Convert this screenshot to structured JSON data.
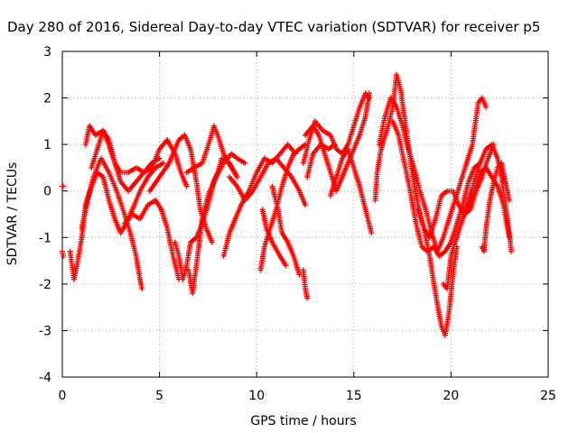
{
  "chart_data": {
    "type": "scatter",
    "title": "Day 280 of 2016, Sidereal Day-to-day VTEC variation (SDTVAR) for receiver p5",
    "xlabel": "GPS time / hours",
    "ylabel": "SDTVAR / TECUs",
    "xlim": [
      0,
      25
    ],
    "ylim": [
      -4,
      3
    ],
    "xticks": [
      "0",
      "5",
      "10",
      "15",
      "20",
      "25"
    ],
    "yticks": [
      "-4",
      "-3",
      "-2",
      "-1",
      "0",
      "1",
      "2",
      "3"
    ],
    "grid": true,
    "marker": "+",
    "color": "#ff0000",
    "tracks": [
      [
        [
          1.0,
          -0.8
        ],
        [
          1.3,
          -0.2
        ],
        [
          1.6,
          0.3
        ],
        [
          2.0,
          0.7
        ],
        [
          2.4,
          0.4
        ],
        [
          2.8,
          0.0
        ],
        [
          3.2,
          -0.5
        ],
        [
          3.5,
          -0.9
        ],
        [
          3.8,
          -1.4
        ],
        [
          4.0,
          -1.9
        ],
        [
          4.1,
          -2.1
        ]
      ],
      [
        [
          1.2,
          1.0
        ],
        [
          1.4,
          1.4
        ],
        [
          1.7,
          1.2
        ],
        [
          2.1,
          1.3
        ],
        [
          2.4,
          1.0
        ],
        [
          2.7,
          0.6
        ],
        [
          3.0,
          0.4
        ],
        [
          3.4,
          0.4
        ],
        [
          3.8,
          0.5
        ],
        [
          4.2,
          0.4
        ],
        [
          4.6,
          0.6
        ],
        [
          5.0,
          0.7
        ]
      ],
      [
        [
          0.4,
          -1.3
        ],
        [
          0.6,
          -1.9
        ],
        [
          0.8,
          -1.5
        ],
        [
          1.0,
          -1.0
        ],
        [
          1.2,
          -0.3
        ],
        [
          1.5,
          0.1
        ],
        [
          1.8,
          0.4
        ],
        [
          2.1,
          0.3
        ],
        [
          2.4,
          -0.2
        ],
        [
          2.7,
          -0.6
        ],
        [
          3.0,
          -0.9
        ],
        [
          3.3,
          -0.7
        ],
        [
          3.6,
          -0.4
        ],
        [
          4.0,
          0.0
        ],
        [
          4.4,
          0.3
        ],
        [
          4.8,
          0.5
        ],
        [
          5.2,
          0.6
        ]
      ],
      [
        [
          1.5,
          0.5
        ],
        [
          1.8,
          0.9
        ],
        [
          2.1,
          1.3
        ],
        [
          2.4,
          1.1
        ],
        [
          2.7,
          0.6
        ],
        [
          3.0,
          0.2
        ],
        [
          3.4,
          0.0
        ],
        [
          3.8,
          0.2
        ],
        [
          4.2,
          0.4
        ],
        [
          4.6,
          0.5
        ],
        [
          5.0,
          0.9
        ],
        [
          5.4,
          1.1
        ],
        [
          5.8,
          0.8
        ],
        [
          6.1,
          0.4
        ],
        [
          6.4,
          0.1
        ]
      ],
      [
        [
          3.2,
          -0.7
        ],
        [
          3.6,
          -0.5
        ],
        [
          4.0,
          -0.6
        ],
        [
          4.4,
          -0.3
        ],
        [
          4.8,
          -0.2
        ],
        [
          5.1,
          -0.4
        ],
        [
          5.4,
          -0.8
        ],
        [
          5.7,
          -1.4
        ],
        [
          6.0,
          -1.9
        ]
      ],
      [
        [
          4.5,
          0.0
        ],
        [
          5.0,
          0.3
        ],
        [
          5.5,
          0.6
        ],
        [
          6.0,
          1.1
        ],
        [
          6.3,
          1.2
        ],
        [
          6.6,
          0.9
        ],
        [
          6.9,
          0.2
        ],
        [
          7.1,
          -0.4
        ],
        [
          7.4,
          -0.8
        ],
        [
          7.7,
          -1.1
        ]
      ],
      [
        [
          5.8,
          -1.1
        ],
        [
          6.0,
          -1.4
        ],
        [
          6.2,
          -1.9
        ],
        [
          6.4,
          -1.6
        ],
        [
          6.6,
          -1.1
        ],
        [
          6.9,
          -1.0
        ],
        [
          7.2,
          -0.7
        ],
        [
          7.5,
          -0.3
        ],
        [
          7.8,
          0.2
        ],
        [
          8.0,
          0.4
        ],
        [
          8.2,
          0.7
        ],
        [
          8.6,
          0.6
        ],
        [
          9.0,
          0.3
        ]
      ],
      [
        [
          6.4,
          0.4
        ],
        [
          6.8,
          0.5
        ],
        [
          7.2,
          0.6
        ],
        [
          7.6,
          1.1
        ],
        [
          7.8,
          1.4
        ],
        [
          8.0,
          1.2
        ],
        [
          8.3,
          0.8
        ],
        [
          8.7,
          0.5
        ],
        [
          9.0,
          0.3
        ]
      ],
      [
        [
          6.5,
          -1.7
        ],
        [
          6.7,
          -2.2
        ],
        [
          6.9,
          -1.6
        ],
        [
          7.2,
          -0.6
        ],
        [
          7.5,
          -0.1
        ],
        [
          7.9,
          0.3
        ],
        [
          8.3,
          0.6
        ],
        [
          8.7,
          0.8
        ],
        [
          9.0,
          0.7
        ],
        [
          9.4,
          0.6
        ]
      ],
      [
        [
          8.3,
          -1.4
        ],
        [
          8.6,
          -0.9
        ],
        [
          8.9,
          -0.6
        ],
        [
          9.2,
          -0.3
        ],
        [
          9.6,
          0.0
        ],
        [
          10.0,
          0.4
        ],
        [
          10.4,
          0.7
        ],
        [
          10.8,
          0.6
        ],
        [
          11.2,
          0.8
        ],
        [
          11.6,
          1.0
        ],
        [
          12.0,
          0.8
        ]
      ],
      [
        [
          8.6,
          0.3
        ],
        [
          9.0,
          0.1
        ],
        [
          9.4,
          -0.2
        ],
        [
          9.8,
          0.0
        ],
        [
          10.2,
          0.3
        ],
        [
          10.6,
          0.6
        ],
        [
          11.0,
          0.7
        ],
        [
          11.4,
          0.5
        ],
        [
          11.8,
          0.3
        ],
        [
          12.2,
          0.0
        ],
        [
          12.5,
          -0.3
        ]
      ],
      [
        [
          10.2,
          -1.7
        ],
        [
          10.4,
          -1.2
        ],
        [
          10.7,
          -0.8
        ],
        [
          11.0,
          -0.4
        ],
        [
          11.3,
          0.1
        ],
        [
          11.6,
          0.5
        ],
        [
          11.9,
          0.8
        ],
        [
          12.2,
          0.9
        ],
        [
          12.5,
          1.0
        ]
      ],
      [
        [
          10.8,
          0.1
        ],
        [
          11.1,
          -0.4
        ],
        [
          11.3,
          -0.9
        ],
        [
          11.6,
          -1.1
        ],
        [
          11.9,
          -1.4
        ],
        [
          12.2,
          -1.8
        ]
      ],
      [
        [
          10.3,
          -0.4
        ],
        [
          10.5,
          -0.8
        ],
        [
          10.8,
          -1.1
        ],
        [
          11.2,
          -1.4
        ],
        [
          11.5,
          -1.6
        ]
      ],
      [
        [
          12.4,
          -1.7
        ],
        [
          12.5,
          -2.1
        ],
        [
          12.6,
          -2.3
        ]
      ],
      [
        [
          12.4,
          0.6
        ],
        [
          12.7,
          1.1
        ],
        [
          13.0,
          1.5
        ],
        [
          13.4,
          1.3
        ],
        [
          13.8,
          1.2
        ],
        [
          14.1,
          0.9
        ],
        [
          14.4,
          0.8
        ],
        [
          14.7,
          1.0
        ],
        [
          15.0,
          1.4
        ],
        [
          15.3,
          1.8
        ],
        [
          15.6,
          2.1
        ],
        [
          15.8,
          2.0
        ]
      ],
      [
        [
          12.5,
          1.2
        ],
        [
          12.9,
          1.4
        ],
        [
          13.2,
          1.2
        ],
        [
          13.5,
          0.8
        ],
        [
          13.8,
          0.4
        ],
        [
          14.1,
          0.0
        ],
        [
          14.4,
          0.3
        ],
        [
          14.7,
          0.6
        ],
        [
          15.0,
          0.9
        ],
        [
          15.3,
          1.2
        ],
        [
          15.6,
          1.6
        ],
        [
          15.8,
          2.1
        ]
      ],
      [
        [
          13.8,
          -0.1
        ],
        [
          14.1,
          0.3
        ],
        [
          14.4,
          0.7
        ],
        [
          14.7,
          0.9
        ],
        [
          15.0,
          0.5
        ],
        [
          15.3,
          0.1
        ],
        [
          15.6,
          -0.4
        ],
        [
          15.9,
          -0.9
        ]
      ],
      [
        [
          12.6,
          0.3
        ],
        [
          12.9,
          0.8
        ],
        [
          13.3,
          1.0
        ],
        [
          13.7,
          0.9
        ],
        [
          14.0,
          1.0
        ]
      ],
      [
        [
          16.1,
          -0.2
        ],
        [
          16.2,
          0.4
        ],
        [
          16.4,
          0.9
        ],
        [
          16.7,
          1.3
        ],
        [
          17.0,
          1.8
        ],
        [
          17.2,
          2.5
        ],
        [
          17.4,
          2.2
        ],
        [
          17.6,
          1.6
        ],
        [
          17.8,
          1.0
        ],
        [
          18.0,
          0.4
        ],
        [
          18.3,
          -0.3
        ],
        [
          18.6,
          -0.8
        ],
        [
          18.9,
          -1.4
        ],
        [
          19.2,
          -2.2
        ],
        [
          19.5,
          -2.9
        ],
        [
          19.7,
          -3.1
        ],
        [
          19.9,
          -2.6
        ],
        [
          20.1,
          -1.8
        ],
        [
          20.3,
          -1.2
        ]
      ],
      [
        [
          16.3,
          1.0
        ],
        [
          16.6,
          1.6
        ],
        [
          16.9,
          2.0
        ],
        [
          17.2,
          1.8
        ],
        [
          17.5,
          1.4
        ],
        [
          17.8,
          0.9
        ],
        [
          18.1,
          0.5
        ],
        [
          18.4,
          0.0
        ],
        [
          18.7,
          -0.4
        ],
        [
          19.0,
          -0.9
        ],
        [
          19.3,
          -1.3
        ],
        [
          19.6,
          -1.0
        ],
        [
          19.9,
          -0.6
        ],
        [
          20.2,
          -0.2
        ],
        [
          20.5,
          0.2
        ],
        [
          20.8,
          0.6
        ],
        [
          21.1,
          1.0
        ],
        [
          21.4,
          1.9
        ],
        [
          21.6,
          2.0
        ],
        [
          21.8,
          1.8
        ]
      ],
      [
        [
          17.0,
          1.5
        ],
        [
          17.3,
          1.2
        ],
        [
          17.6,
          0.6
        ],
        [
          17.9,
          0.0
        ],
        [
          18.2,
          -0.7
        ],
        [
          18.5,
          -1.2
        ],
        [
          18.8,
          -1.3
        ],
        [
          19.1,
          -1.2
        ],
        [
          19.4,
          -1.4
        ],
        [
          19.7,
          -1.3
        ],
        [
          20.0,
          -1.1
        ],
        [
          20.3,
          -0.7
        ],
        [
          20.6,
          -0.3
        ],
        [
          20.9,
          0.2
        ],
        [
          21.2,
          0.5
        ],
        [
          21.5,
          0.6
        ]
      ],
      [
        [
          18.3,
          -0.4
        ],
        [
          18.6,
          -0.8
        ],
        [
          18.9,
          -1.0
        ],
        [
          19.2,
          -0.6
        ],
        [
          19.5,
          -0.1
        ],
        [
          19.8,
          0.0
        ],
        [
          20.1,
          0.0
        ],
        [
          20.4,
          -0.3
        ],
        [
          20.7,
          -0.5
        ],
        [
          21.0,
          -0.4
        ],
        [
          21.3,
          0.0
        ],
        [
          21.6,
          0.3
        ],
        [
          21.9,
          0.7
        ],
        [
          22.2,
          1.0
        ]
      ],
      [
        [
          19.6,
          -2.0
        ],
        [
          19.8,
          -2.1
        ],
        [
          20.0,
          -1.4
        ],
        [
          20.3,
          -1.0
        ],
        [
          20.6,
          -0.6
        ],
        [
          20.9,
          -0.2
        ],
        [
          21.2,
          0.2
        ],
        [
          21.5,
          0.6
        ],
        [
          21.8,
          0.9
        ],
        [
          22.1,
          1.0
        ],
        [
          22.4,
          0.7
        ],
        [
          22.6,
          0.3
        ],
        [
          22.8,
          -0.3
        ],
        [
          23.0,
          -0.9
        ],
        [
          23.1,
          -1.3
        ]
      ],
      [
        [
          21.6,
          -1.2
        ],
        [
          21.7,
          -1.3
        ],
        [
          21.8,
          -0.8
        ],
        [
          22.0,
          -0.2
        ],
        [
          22.2,
          0.2
        ],
        [
          22.4,
          0.5
        ],
        [
          22.6,
          0.6
        ],
        [
          22.8,
          0.2
        ],
        [
          23.0,
          -0.2
        ]
      ],
      [
        [
          20.6,
          -0.6
        ],
        [
          20.9,
          -0.3
        ],
        [
          21.2,
          0.0
        ],
        [
          21.5,
          0.4
        ],
        [
          21.8,
          0.5
        ],
        [
          22.1,
          0.3
        ],
        [
          22.4,
          0.1
        ],
        [
          22.7,
          -0.3
        ],
        [
          23.0,
          -1.0
        ]
      ],
      [
        [
          0.0,
          0.1
        ],
        [
          0.05,
          0.1
        ]
      ],
      [
        [
          0.0,
          -1.3
        ],
        [
          0.05,
          -1.4
        ]
      ]
    ]
  }
}
